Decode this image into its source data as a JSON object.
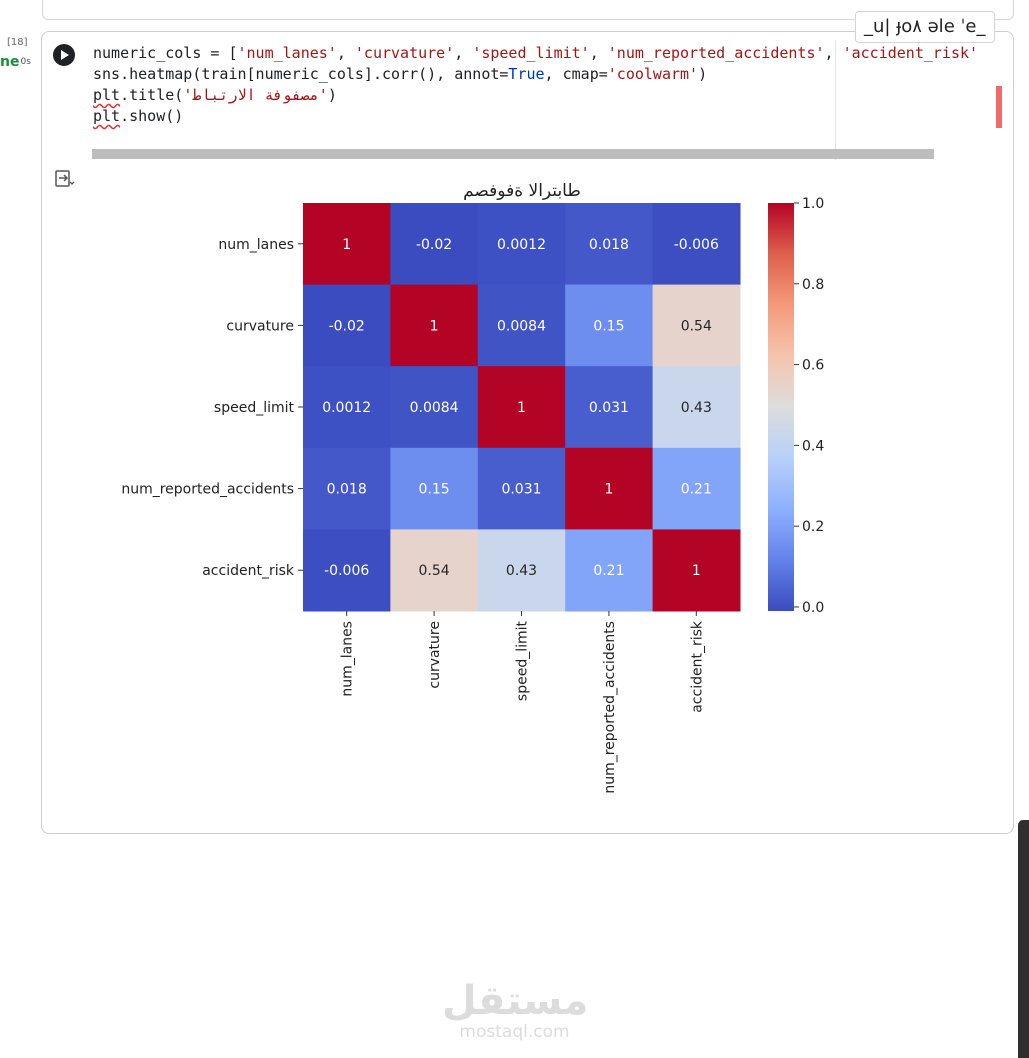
{
  "cell": {
    "execution_count": "[18]",
    "status_label": "ne",
    "exec_time": "0s",
    "code_lines": [
      [
        [
          "numeric_cols = [",
          ""
        ],
        [
          "'num_lanes'",
          "s"
        ],
        [
          ", ",
          ""
        ],
        [
          "'curvature'",
          "s"
        ],
        [
          ", ",
          ""
        ],
        [
          "'speed_limit'",
          "s"
        ],
        [
          ", ",
          ""
        ],
        [
          "'num_reported_accidents'",
          "s"
        ],
        [
          ", ",
          ""
        ],
        [
          "'accident_risk'",
          "s"
        ]
      ],
      [
        [
          "sns.heatmap(train[numeric_cols].corr(), annot=",
          ""
        ],
        [
          "True",
          "k"
        ],
        [
          ", cmap=",
          ""
        ],
        [
          "'coolwarm'",
          "s"
        ],
        [
          ")",
          ""
        ]
      ],
      [
        [
          "plt",
          "u"
        ],
        [
          ".title(",
          ""
        ],
        [
          "'مصفوفة الارتباط'",
          "s"
        ],
        [
          ")",
          ""
        ]
      ],
      [
        [
          "plt",
          "u"
        ],
        [
          ".show()",
          ""
        ]
      ]
    ],
    "toolbar_text": "_u| ɟo٨ ǝle ˈe_"
  },
  "chart_data": {
    "type": "heatmap",
    "title": "طابترالا ةفوفصم",
    "x_labels": [
      "num_lanes",
      "curvature",
      "speed_limit",
      "num_reported_accidents",
      "accident_risk"
    ],
    "y_labels": [
      "num_lanes",
      "curvature",
      "speed_limit",
      "num_reported_accidents",
      "accident_risk"
    ],
    "values": [
      [
        1,
        -0.02,
        0.0012,
        0.018,
        -0.006
      ],
      [
        -0.02,
        1,
        0.0084,
        0.15,
        0.54
      ],
      [
        0.0012,
        0.0084,
        1,
        0.031,
        0.43
      ],
      [
        0.018,
        0.15,
        0.031,
        1,
        0.21
      ],
      [
        -0.006,
        0.54,
        0.43,
        0.21,
        1
      ]
    ],
    "annotations": [
      [
        "1",
        "-0.02",
        "0.0012",
        "0.018",
        "-0.006"
      ],
      [
        "-0.02",
        "1",
        "0.0084",
        "0.15",
        "0.54"
      ],
      [
        "0.0012",
        "0.0084",
        "1",
        "0.031",
        "0.43"
      ],
      [
        "0.018",
        "0.15",
        "0.031",
        "1",
        "0.21"
      ],
      [
        "-0.006",
        "0.54",
        "0.43",
        "0.21",
        "1"
      ]
    ],
    "colormap": "coolwarm",
    "colorbar": {
      "range": [
        -0.01,
        1.0
      ],
      "ticks": [
        "0.0",
        "0.2",
        "0.4",
        "0.6",
        "0.8",
        "1.0"
      ]
    }
  },
  "watermark": {
    "arabic": "مستقل",
    "latin": "mostaql.com"
  },
  "colors": {
    "accent_green": "#1e8e3e",
    "marker_red": "#f06a6a"
  }
}
